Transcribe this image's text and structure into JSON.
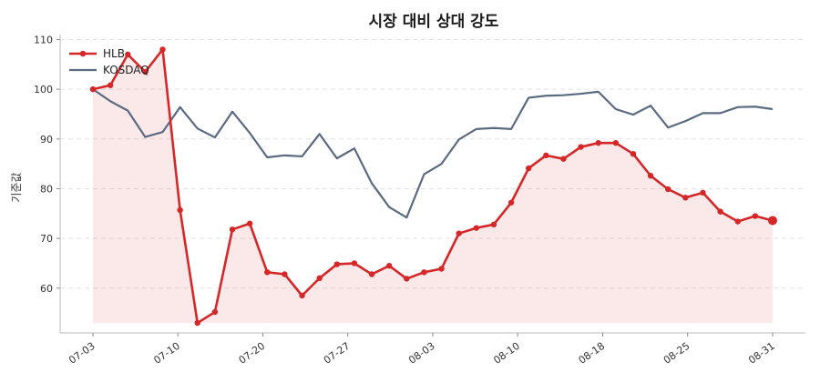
{
  "chart_data": {
    "type": "line",
    "title": "시장 대비 상대 강도",
    "xlabel": "",
    "ylabel": "기준값",
    "ylim": [
      51,
      111
    ],
    "yticks": [
      60,
      70,
      80,
      90,
      100,
      110
    ],
    "xticks": [
      "07-03",
      "07-10",
      "07-20",
      "07-27",
      "08-03",
      "08-10",
      "08-18",
      "08-25",
      "08-31"
    ],
    "grid": "horizontal-dashed",
    "legend": "top-left",
    "colors": {
      "HLB": "#d62728",
      "KOSDAQ": "#5a6a80",
      "fill": "#d62728"
    },
    "series": [
      {
        "name": "HLB",
        "values": [
          100.0,
          100.8,
          107.0,
          103.5,
          108.0,
          75.7,
          53.0,
          55.2,
          71.8,
          73.0,
          63.2,
          62.8,
          58.5,
          62.0,
          64.8,
          65.0,
          62.8,
          64.5,
          61.9,
          63.2,
          63.9,
          71.0,
          72.1,
          72.8,
          77.2,
          84.1,
          86.7,
          86.0,
          88.4,
          89.2,
          89.2,
          87.0,
          82.6,
          79.9,
          78.2,
          79.2,
          75.4,
          73.4,
          74.5,
          73.6
        ]
      },
      {
        "name": "KOSDAQ",
        "values": [
          100.0,
          97.6,
          95.7,
          90.4,
          91.4,
          96.4,
          92.1,
          90.3,
          95.5,
          91.2,
          86.3,
          86.7,
          86.5,
          91.0,
          86.1,
          88.1,
          81.1,
          76.3,
          74.2,
          82.9,
          85.0,
          89.9,
          92.0,
          92.2,
          92.0,
          98.3,
          98.7,
          98.8,
          99.1,
          99.5,
          96.0,
          94.9,
          96.7,
          92.3,
          93.6,
          95.2,
          95.2,
          96.4,
          96.5,
          96.0
        ]
      }
    ]
  }
}
